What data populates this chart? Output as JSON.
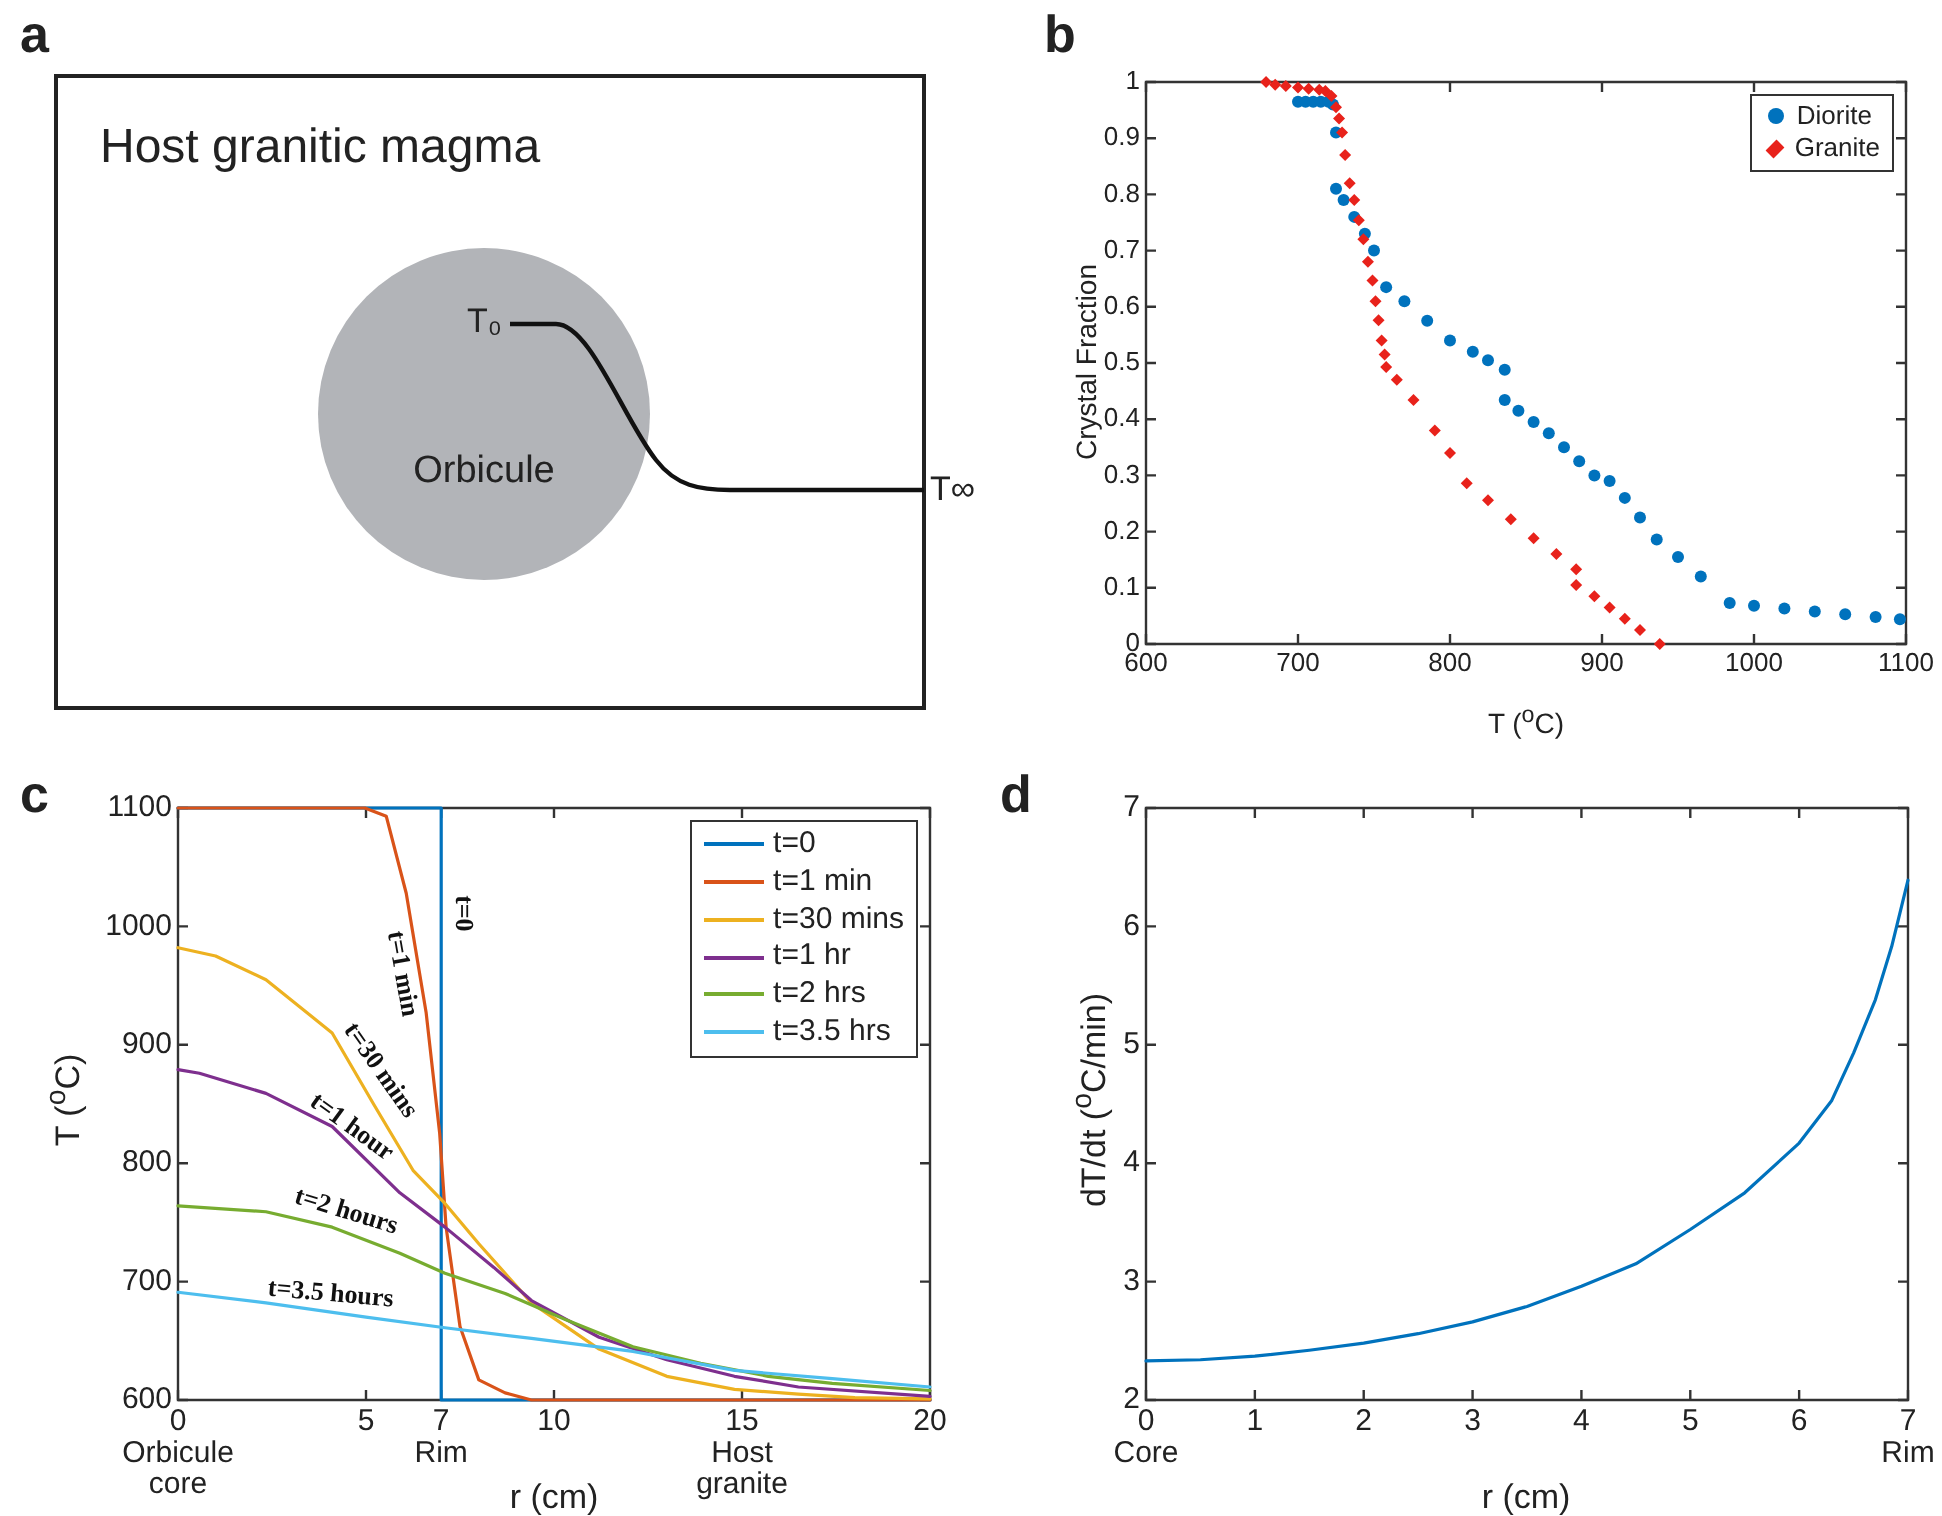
{
  "chart_data": [
    {
      "type": "other",
      "title": "a",
      "annotations": [
        "Host granitic magma",
        "Orbicule",
        "T₀",
        "T∞"
      ]
    },
    {
      "type": "scatter",
      "title": "b",
      "xlabel": "T ($^{o}$C)",
      "ylabel": "Crystal Fraction",
      "legend": "top right",
      "xlim": [
        600,
        1100
      ],
      "xticks": [
        600,
        700,
        800,
        900,
        1000,
        1100
      ],
      "ylim": [
        0,
        1
      ],
      "yticks": [
        0,
        0.1,
        0.2,
        0.3,
        0.4,
        0.5,
        0.6,
        0.7,
        0.8,
        0.9,
        1
      ],
      "series": [
        {
          "name": "Diorite",
          "color": "#0072bd",
          "marker": "circle",
          "x": [
            700,
            705,
            710,
            715,
            720,
            723,
            725,
            725,
            730,
            737,
            744,
            750,
            758,
            770,
            785,
            800,
            815,
            825,
            836,
            836,
            845,
            855,
            865,
            875,
            885,
            895,
            905,
            915,
            925,
            936,
            950,
            965,
            984,
            1000,
            1020,
            1040,
            1060,
            1080,
            1096
          ],
          "values": [
            0.965,
            0.965,
            0.965,
            0.965,
            0.965,
            0.96,
            0.91,
            0.81,
            0.79,
            0.76,
            0.73,
            0.7,
            0.635,
            0.61,
            0.575,
            0.54,
            0.52,
            0.505,
            0.488,
            0.434,
            0.415,
            0.395,
            0.375,
            0.35,
            0.325,
            0.3,
            0.29,
            0.26,
            0.225,
            0.186,
            0.155,
            0.12,
            0.073,
            0.068,
            0.063,
            0.058,
            0.053,
            0.048,
            0.044
          ]
        },
        {
          "name": "Granite",
          "color": "#e8221b",
          "marker": "diamond",
          "x": [
            679,
            685,
            692,
            700,
            707,
            714,
            718,
            722,
            725,
            727,
            729,
            731,
            734,
            737,
            740,
            743,
            746,
            749,
            751,
            753,
            755,
            757,
            758,
            765,
            776,
            790,
            800,
            811,
            825,
            840,
            855,
            870,
            883,
            883,
            895,
            905,
            915,
            925,
            938
          ],
          "values": [
            1.0,
            0.995,
            0.993,
            0.99,
            0.988,
            0.986,
            0.984,
            0.975,
            0.955,
            0.935,
            0.91,
            0.87,
            0.82,
            0.79,
            0.754,
            0.72,
            0.68,
            0.647,
            0.61,
            0.576,
            0.54,
            0.515,
            0.493,
            0.47,
            0.434,
            0.38,
            0.34,
            0.286,
            0.256,
            0.222,
            0.188,
            0.16,
            0.133,
            0.105,
            0.085,
            0.065,
            0.045,
            0.025,
            0.0
          ]
        }
      ]
    },
    {
      "type": "line",
      "title": "c",
      "xlabel": "r (cm)",
      "ylabel": "T ($^{o}$C)",
      "legend": "top right",
      "xlim": [
        0,
        20
      ],
      "xticks": [
        {
          "value": 0,
          "label": "0\nOrbicule\ncore"
        },
        5,
        {
          "value": 7,
          "label": "7\nRim"
        },
        10,
        {
          "value": 15,
          "label": "15\nHost\ngranite"
        },
        20
      ],
      "ylim": [
        600,
        1100
      ],
      "yticks": [
        600,
        700,
        800,
        900,
        1000,
        1100
      ],
      "series": [
        {
          "name": "t=0",
          "color": "#0072bd",
          "x": [
            0,
            7,
            7,
            20
          ],
          "values": [
            1100,
            1100,
            600,
            600
          ]
        },
        {
          "name": "t=1 min",
          "color": "#d95319",
          "x": [
            0,
            4,
            4.97,
            5.54,
            6.07,
            6.6,
            6.96,
            7.13,
            7.5,
            8.0,
            8.7,
            9.4,
            20
          ],
          "values": [
            1100,
            1100,
            1100,
            1093,
            1028,
            927,
            825,
            746,
            662,
            617,
            606,
            600,
            600
          ]
        },
        {
          "name": "t=30 mins",
          "color": "#edb120",
          "x": [
            0,
            1,
            2.34,
            4.1,
            5.2,
            6.25,
            7.1,
            8,
            9.4,
            11.2,
            13,
            14.8,
            16.5,
            18,
            20
          ],
          "values": [
            982,
            975,
            955,
            910,
            850,
            794,
            766,
            732,
            682,
            643,
            620,
            609,
            605,
            602,
            601
          ]
        },
        {
          "name": "t=1 hr",
          "color": "#7e2f8e",
          "x": [
            0,
            0.57,
            2.34,
            4.1,
            5.9,
            7.1,
            8.4,
            9.4,
            11.2,
            13,
            14.8,
            16.5,
            20
          ],
          "values": [
            879,
            876,
            859,
            831,
            775,
            746,
            712,
            684,
            653,
            634,
            620,
            611,
            603
          ]
        },
        {
          "name": "t=2 hrs",
          "color": "#77ac30",
          "x": [
            0,
            2.34,
            4.1,
            5.9,
            7.1,
            8.7,
            10.3,
            12.1,
            13.9,
            15.7,
            17.4,
            20
          ],
          "values": [
            764,
            759,
            746,
            724,
            707,
            690,
            668,
            645,
            631,
            620,
            614,
            608
          ]
        },
        {
          "name": "t=3.5 hrs",
          "color": "#4dbeee",
          "x": [
            0,
            2.34,
            5,
            7.1,
            9.4,
            12.1,
            14.8,
            17.4,
            20
          ],
          "values": [
            691,
            682,
            670,
            661,
            652,
            641,
            625,
            618,
            611
          ]
        }
      ],
      "annotations": [
        {
          "text": "t=0",
          "x": 7,
          "y": 1011
        },
        {
          "text": "t=1 min",
          "x": 6.43,
          "y": 960
        },
        {
          "text": "t=30 mins",
          "x": 5.27,
          "y": 846
        },
        {
          "text": "t=1 hour",
          "x": 4.61,
          "y": 815
        },
        {
          "text": "t=2 hours",
          "x": 4.47,
          "y": 742
        },
        {
          "text": "t=3.5 hours",
          "x": 4.06,
          "y": 674
        }
      ]
    },
    {
      "type": "line",
      "title": "d",
      "xlabel": "r (cm)",
      "ylabel": "dT/dt ($^{o}$C/min)",
      "xlim": [
        0,
        7
      ],
      "xticks": [
        {
          "value": 0,
          "label": "0\nCore"
        },
        1,
        2,
        3,
        4,
        5,
        6,
        {
          "value": 7,
          "label": "7\nRim"
        }
      ],
      "ylim": [
        2,
        7
      ],
      "yticks": [
        2,
        3,
        4,
        5,
        6,
        7
      ],
      "series": [
        {
          "color": "#0072bd",
          "x": [
            0,
            0.5,
            1,
            1.5,
            2,
            2.5,
            3,
            3.5,
            4,
            4.5,
            5,
            5.5,
            6,
            6.3,
            6.5,
            6.7,
            6.85,
            7
          ],
          "values": [
            2.33,
            2.34,
            2.37,
            2.42,
            2.48,
            2.56,
            2.66,
            2.79,
            2.96,
            3.15,
            3.44,
            3.75,
            4.17,
            4.53,
            4.93,
            5.38,
            5.83,
            6.39
          ]
        }
      ]
    }
  ]
}
